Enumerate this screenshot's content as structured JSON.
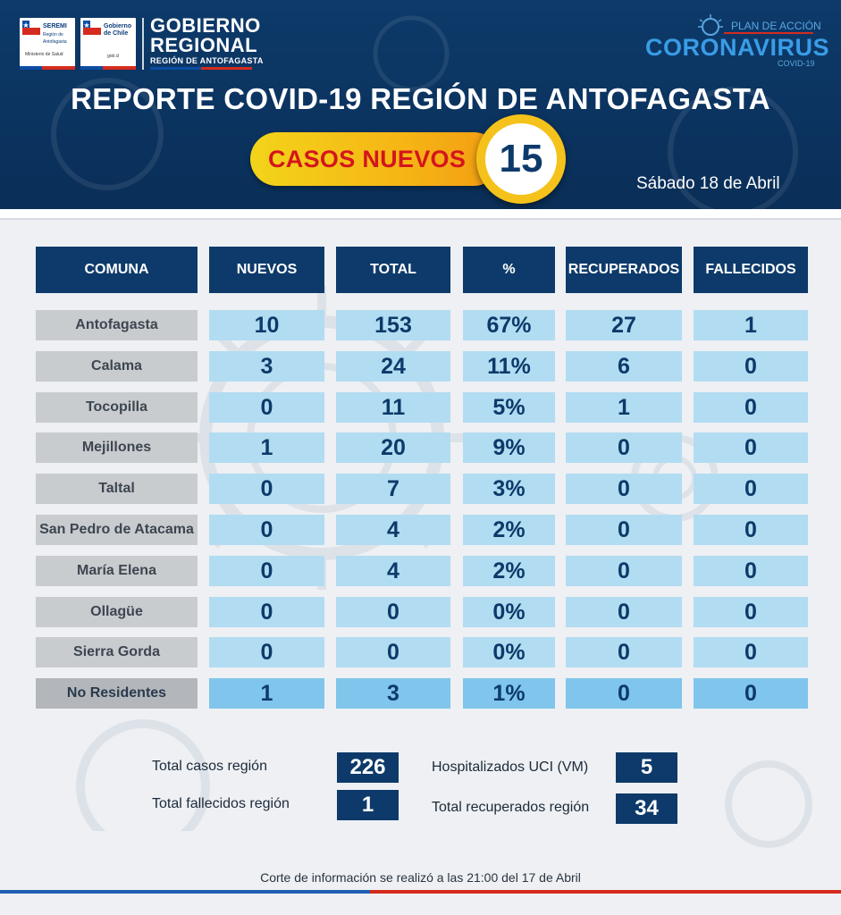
{
  "header": {
    "logo1": {
      "title": "SEREMI",
      "sub": "Región de Antofagasta",
      "ministry": "Ministerio de Salud"
    },
    "logo2": {
      "title": "Gobierno de Chile",
      "sub": "gob.cl"
    },
    "gobierno_line1": "GOBIERNO",
    "gobierno_line2": "REGIONAL",
    "gobierno_sub": "REGIÓN DE ANTOFAGASTA",
    "plan_label": "PLAN DE ACCIÓN",
    "plan_title": "CORONAVIRUS",
    "plan_covid": "COVID-19"
  },
  "main_title": "REPORTE COVID-19 REGIÓN DE ANTOFAGASTA",
  "casos_nuevos": {
    "label": "CASOS NUEVOS",
    "value": "15"
  },
  "fecha": "Sábado 18 de Abril",
  "table": {
    "headers": [
      "COMUNA",
      "NUEVOS",
      "TOTAL",
      "%",
      "RECUPERADOS",
      "FALLECIDOS"
    ],
    "rows": [
      [
        "Antofagasta",
        "10",
        "153",
        "67%",
        "27",
        "1"
      ],
      [
        "Calama",
        "3",
        "24",
        "11%",
        "6",
        "0"
      ],
      [
        "Tocopilla",
        "0",
        "11",
        "5%",
        "1",
        "0"
      ],
      [
        "Mejillones",
        "1",
        "20",
        "9%",
        "0",
        "0"
      ],
      [
        "Taltal",
        "0",
        "7",
        "3%",
        "0",
        "0"
      ],
      [
        "San Pedro de Atacama",
        "0",
        "4",
        "2%",
        "0",
        "0"
      ],
      [
        "María Elena",
        "0",
        "4",
        "2%",
        "0",
        "0"
      ],
      [
        "Ollagüe",
        "0",
        "0",
        "0%",
        "0",
        "0"
      ],
      [
        "Sierra Gorda",
        "0",
        "0",
        "0%",
        "0",
        "0"
      ],
      [
        "No Residentes",
        "1",
        "3",
        "1%",
        "0",
        "0"
      ]
    ]
  },
  "summary": {
    "total_casos_label": "Total casos región",
    "total_casos_value": "226",
    "total_fallecidos_label": "Total fallecidos región",
    "total_fallecidos_value": "1",
    "uci_label": "Hospitalizados UCI (VM)",
    "uci_value": "5",
    "recuperados_label": "Total recuperados región",
    "recuperados_value": "34"
  },
  "footer": "Corte de información se realizó a las 21:00 del 17 de Abril",
  "colors": {
    "navy": "#0d3a6a",
    "light_blue": "#b2dcf1",
    "gray": "#c9cccf",
    "yellow": "#f4c21a",
    "red": "#d4151d"
  }
}
